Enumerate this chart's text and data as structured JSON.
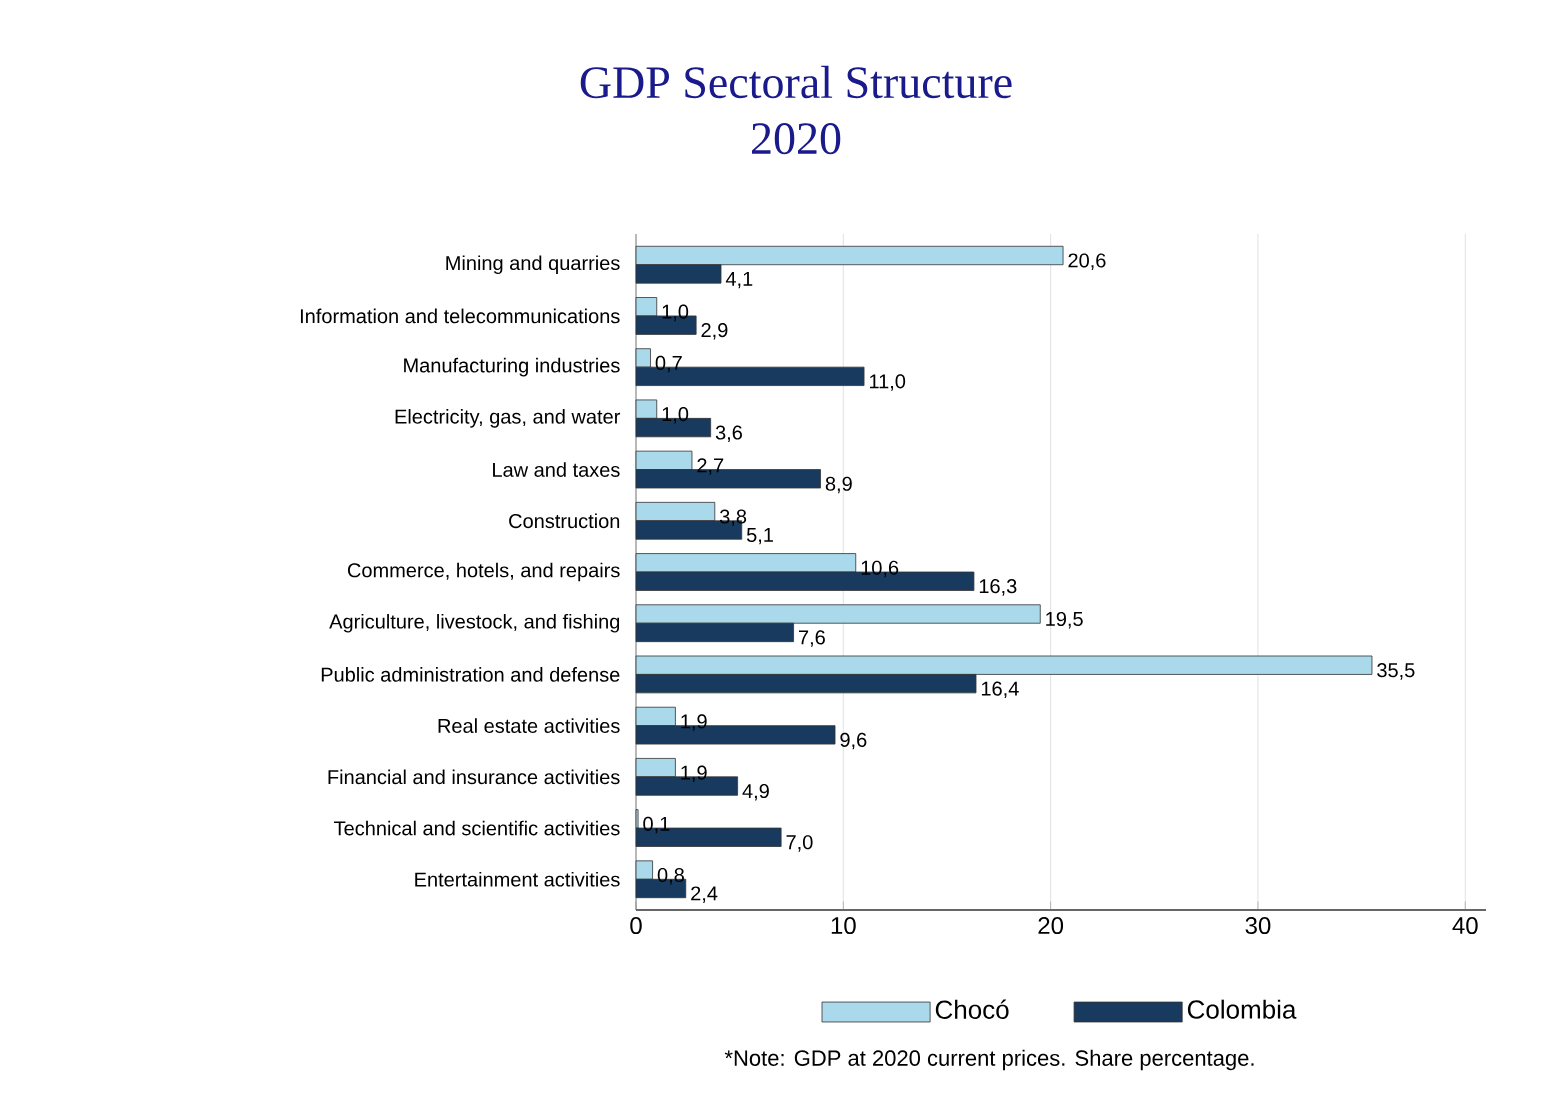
{
  "chart_data": {
    "type": "bar",
    "orientation": "horizontal",
    "title": "GDP Sectoral Structure\n2020",
    "categories": [
      "Mining and quarries",
      "Information and telecommunications",
      "Manufacturing industries",
      "Electricity, gas, and water",
      "Law and taxes",
      "Construction",
      "Commerce, hotels, and repairs",
      "Agriculture, livestock, and fishing",
      "Public administration and defense",
      "Real estate activities",
      "Financial and insurance activities",
      "Technical and scientific activities",
      "Entertainment activities"
    ],
    "series": [
      {
        "name": "Chocó",
        "color": "#a9d9ea",
        "values": [
          20.6,
          1.0,
          0.7,
          1.0,
          2.7,
          3.8,
          10.6,
          19.5,
          35.5,
          1.9,
          1.9,
          0.1,
          0.8
        ],
        "value_labels": [
          "20,6",
          "1,0",
          "0,7",
          "1,0",
          "2,7",
          "3,8",
          "10,6",
          "19,5",
          "35,5",
          "1,9",
          "1,9",
          "0,1",
          "0,8"
        ]
      },
      {
        "name": "Colombia",
        "color": "#173a5e",
        "values": [
          4.1,
          2.9,
          11.0,
          3.6,
          8.9,
          5.1,
          16.3,
          7.6,
          16.4,
          9.6,
          4.9,
          7.0,
          2.4
        ],
        "value_labels": [
          "4,1",
          "2,9",
          "11,0",
          "3,6",
          "8,9",
          "5,1",
          "16,3",
          "7,6",
          "16,4",
          "9,6",
          "4,9",
          "7,0",
          "2,4"
        ]
      }
    ],
    "xlim": [
      0,
      41
    ],
    "xticks": [
      0,
      10,
      20,
      30,
      40
    ],
    "grid": "x",
    "legend": "bottom",
    "annotations": [
      "*Note: GDP at 2020 current prices. Share percentage."
    ]
  }
}
